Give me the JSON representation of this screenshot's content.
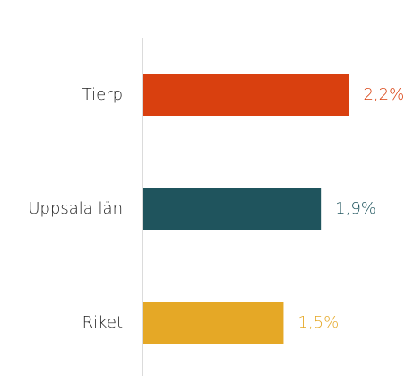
{
  "chart_data": {
    "type": "barh",
    "categories": [
      "Tierp",
      "Uppsala län",
      "Riket"
    ],
    "values": [
      2.2,
      1.9,
      1.5
    ],
    "value_labels": [
      "2,2%",
      "1,9%",
      "1,5%"
    ],
    "colors": [
      "#d9400f",
      "#1f545d",
      "#e5a826"
    ]
  }
}
